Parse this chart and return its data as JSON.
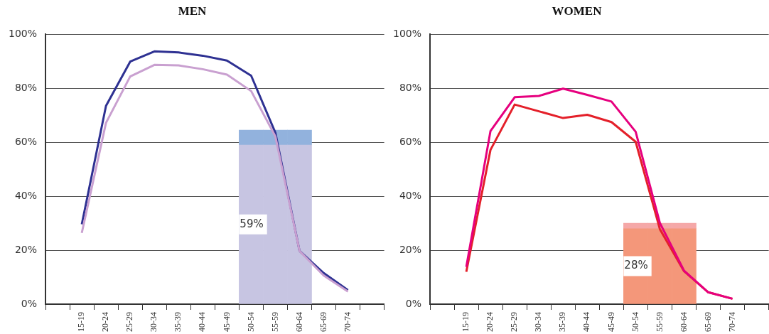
{
  "chart_data": [
    {
      "type": "line",
      "title": "MEN",
      "categories": [
        null,
        "15-19",
        "20-24",
        "25-29",
        "30-34",
        "35-39",
        "40-44",
        "45-49",
        "50-54",
        "55-59",
        "60-64",
        "65-69",
        "70-74",
        null
      ],
      "ylim": [
        0,
        100
      ],
      "yticks": [
        {
          "value": 0,
          "label": "0%"
        },
        {
          "value": 20,
          "label": "20%"
        },
        {
          "value": 40,
          "label": "40%"
        },
        {
          "value": 60,
          "label": "60%"
        },
        {
          "value": 80,
          "label": "80%"
        },
        {
          "value": 100,
          "label": "100%"
        }
      ],
      "grid": "y",
      "stacked": true,
      "series": [
        {
          "type": "bar",
          "color": "#c7c5e2",
          "values": [
            null,
            null,
            null,
            null,
            null,
            null,
            null,
            null,
            59,
            59,
            59,
            null,
            null,
            null
          ],
          "value_labels": [
            null,
            null,
            null,
            null,
            null,
            null,
            null,
            null,
            "59%",
            null,
            null,
            null,
            null,
            null
          ]
        },
        {
          "type": "bar",
          "color": "#92b2dd",
          "values": [
            null,
            null,
            null,
            null,
            null,
            null,
            null,
            null,
            5.5,
            5.5,
            5.5,
            null,
            null,
            null
          ]
        },
        {
          "color": "#c9a0d0",
          "values": [
            null,
            26.4,
            67.2,
            84.4,
            88.7,
            88.5,
            87.1,
            85.1,
            79,
            62.2,
            19.7,
            10.6,
            4.7,
            null
          ]
        },
        {
          "color": "#2e3192",
          "values": [
            null,
            29.6,
            73.5,
            89.9,
            93.7,
            93.3,
            92.1,
            90.3,
            84.7,
            63.6,
            19.7,
            11.5,
            5.2,
            null
          ]
        }
      ]
    },
    {
      "type": "line",
      "title": "WOMEN",
      "categories": [
        null,
        "15-19",
        "20-24",
        "25-29",
        "30-34",
        "35-39",
        "40-44",
        "45-49",
        "50-54",
        "55-59",
        "60-64",
        "65-69",
        "70-74",
        null
      ],
      "ylim": [
        0,
        100
      ],
      "yticks": [
        {
          "value": 0,
          "label": "0%"
        },
        {
          "value": 20,
          "label": "20%"
        },
        {
          "value": 40,
          "label": "40%"
        },
        {
          "value": 60,
          "label": "60%"
        },
        {
          "value": 80,
          "label": "80%"
        },
        {
          "value": 100,
          "label": "100%"
        }
      ],
      "grid": "y",
      "stacked": true,
      "series": [
        {
          "type": "bar",
          "color": "#f4977a",
          "values": [
            null,
            null,
            null,
            null,
            null,
            null,
            null,
            null,
            28,
            28,
            28,
            null,
            null,
            null
          ],
          "value_labels": [
            null,
            null,
            null,
            null,
            null,
            null,
            null,
            null,
            "28%",
            null,
            null,
            null,
            null,
            null
          ]
        },
        {
          "type": "bar",
          "color": "#f5a8a8",
          "values": [
            null,
            null,
            null,
            null,
            null,
            null,
            null,
            null,
            2,
            2,
            2,
            null,
            null,
            null
          ]
        },
        {
          "color": "#e6007e",
          "values": [
            null,
            13.8,
            64.2,
            76.7,
            77.2,
            79.9,
            77.6,
            75.1,
            63.9,
            30.1,
            12.4,
            4.4,
            2.0,
            null
          ]
        },
        {
          "color": "#e4202a",
          "values": [
            null,
            12,
            57.2,
            74,
            71.5,
            69,
            70.2,
            67.5,
            60.2,
            27.8,
            12.2,
            4.4,
            2.0,
            null
          ]
        }
      ]
    }
  ]
}
